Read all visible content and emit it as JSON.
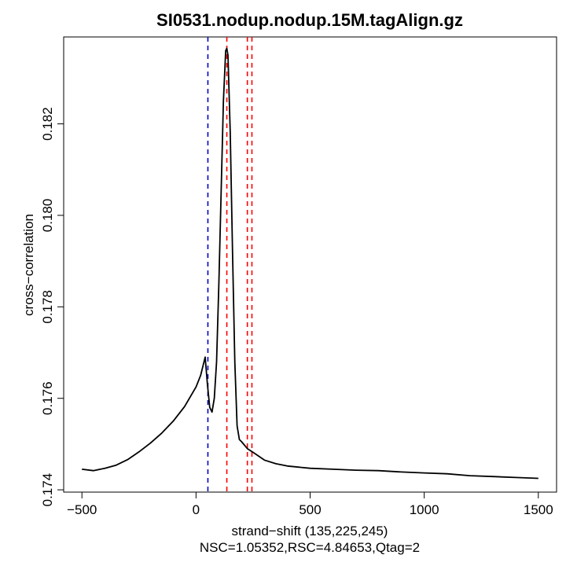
{
  "chart_data": {
    "type": "line",
    "title": "SI0531.nodup.nodup.15M.tagAlign.gz",
    "xlabel": "strand−shift (135,225,245)",
    "subtitle": "NSC=1.05352,RSC=4.84653,Qtag=2",
    "ylabel": "cross−correlation",
    "xlim": [
      -580,
      1580
    ],
    "ylim": [
      0.17395,
      0.1839
    ],
    "xticks": [
      -500,
      0,
      500,
      1000,
      1500
    ],
    "xtick_labels": [
      "−500",
      "0",
      "500",
      "1000",
      "1500"
    ],
    "yticks": [
      0.174,
      0.176,
      0.178,
      0.18,
      0.182
    ],
    "ytick_labels": [
      "0.174",
      "0.176",
      "0.178",
      "0.180",
      "0.182"
    ],
    "grid": false,
    "series": [
      {
        "color": "#000000",
        "x": [
          -500,
          -450,
          -400,
          -350,
          -300,
          -250,
          -200,
          -150,
          -100,
          -50,
          0,
          20,
          40,
          50,
          60,
          70,
          80,
          90,
          100,
          110,
          120,
          130,
          135,
          140,
          150,
          160,
          170,
          180,
          190,
          200,
          225,
          250,
          300,
          350,
          400,
          500,
          600,
          700,
          800,
          900,
          1000,
          1100,
          1200,
          1300,
          1400,
          1500
        ],
        "y": [
          0.17445,
          0.17442,
          0.17447,
          0.17454,
          0.17466,
          0.17483,
          0.17502,
          0.17524,
          0.1755,
          0.17582,
          0.17625,
          0.1765,
          0.1769,
          0.1763,
          0.1758,
          0.1757,
          0.176,
          0.1768,
          0.1785,
          0.1805,
          0.1825,
          0.1836,
          0.18365,
          0.1835,
          0.1818,
          0.1792,
          0.1768,
          0.1754,
          0.1751,
          0.17505,
          0.1749,
          0.17482,
          0.17465,
          0.17457,
          0.17452,
          0.17447,
          0.17445,
          0.17443,
          0.17442,
          0.17439,
          0.17437,
          0.17435,
          0.17431,
          0.17429,
          0.17427,
          0.17425
        ]
      }
    ],
    "vlines": [
      {
        "x": 52,
        "color": "#0000cc",
        "style": "dashed"
      },
      {
        "x": 135,
        "color": "#ff0000",
        "style": "dashed"
      },
      {
        "x": 225,
        "color": "#ff0000",
        "style": "dashed"
      },
      {
        "x": 245,
        "color": "#ff0000",
        "style": "dashed"
      }
    ]
  }
}
